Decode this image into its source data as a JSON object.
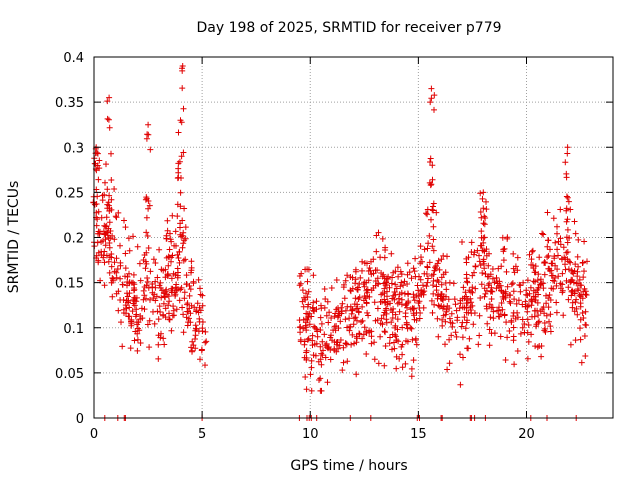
{
  "chart_data": {
    "type": "scatter",
    "title": "Day 198 of 2025, SRMTID for receiver p779",
    "xlabel": "GPS time / hours",
    "ylabel": "SRMTID / TECUs",
    "xlim": [
      0,
      24
    ],
    "ylim": [
      0,
      0.4
    ],
    "xticks": [
      0,
      5,
      10,
      15,
      20
    ],
    "yticks": [
      0,
      0.05,
      0.1,
      0.15,
      0.2,
      0.25,
      0.3,
      0.35,
      0.4
    ],
    "ytick_labels": [
      "0",
      "0.05",
      "0.1",
      "0.15",
      "0.2",
      "0.25",
      "0.3",
      "0.35",
      "0.4"
    ],
    "xtick_labels": [
      "0",
      "5",
      "10",
      "15",
      "20"
    ],
    "grid": true,
    "marker": "+",
    "color": "#e00000",
    "series": [
      {
        "name": "SRMTID",
        "segments": [
          {
            "x_start": 0.0,
            "x_end": 5.2,
            "points_per_hour": 72,
            "peaks": [
              {
                "x": 0.1,
                "y": 0.3
              },
              {
                "x": 0.7,
                "y": 0.355
              },
              {
                "x": 2.5,
                "y": 0.325
              },
              {
                "x": 4.1,
                "y": 0.39
              },
              {
                "x": 4.0,
                "y": 0.33
              }
            ]
          },
          {
            "x_start": 9.5,
            "x_end": 22.8,
            "points_per_hour": 72,
            "peaks": [
              {
                "x": 15.6,
                "y": 0.365
              },
              {
                "x": 21.9,
                "y": 0.3
              },
              {
                "x": 18.0,
                "y": 0.25
              }
            ]
          }
        ],
        "profile": [
          {
            "x": 0.0,
            "y": 0.22
          },
          {
            "x": 0.5,
            "y": 0.2
          },
          {
            "x": 1.0,
            "y": 0.17
          },
          {
            "x": 1.5,
            "y": 0.14
          },
          {
            "x": 2.0,
            "y": 0.13
          },
          {
            "x": 2.5,
            "y": 0.15
          },
          {
            "x": 3.0,
            "y": 0.14
          },
          {
            "x": 3.5,
            "y": 0.15
          },
          {
            "x": 4.0,
            "y": 0.18
          },
          {
            "x": 4.5,
            "y": 0.12
          },
          {
            "x": 5.0,
            "y": 0.1
          },
          {
            "x": 5.2,
            "y": 0.09
          },
          {
            "x": 9.5,
            "y": 0.12
          },
          {
            "x": 10.0,
            "y": 0.09
          },
          {
            "x": 10.5,
            "y": 0.08
          },
          {
            "x": 11.0,
            "y": 0.1
          },
          {
            "x": 11.5,
            "y": 0.11
          },
          {
            "x": 12.0,
            "y": 0.12
          },
          {
            "x": 12.5,
            "y": 0.13
          },
          {
            "x": 13.0,
            "y": 0.14
          },
          {
            "x": 13.5,
            "y": 0.13
          },
          {
            "x": 14.0,
            "y": 0.12
          },
          {
            "x": 14.5,
            "y": 0.12
          },
          {
            "x": 15.0,
            "y": 0.13
          },
          {
            "x": 15.5,
            "y": 0.19
          },
          {
            "x": 16.0,
            "y": 0.14
          },
          {
            "x": 16.5,
            "y": 0.1
          },
          {
            "x": 17.0,
            "y": 0.12
          },
          {
            "x": 17.5,
            "y": 0.14
          },
          {
            "x": 18.0,
            "y": 0.17
          },
          {
            "x": 18.5,
            "y": 0.13
          },
          {
            "x": 19.0,
            "y": 0.14
          },
          {
            "x": 19.5,
            "y": 0.13
          },
          {
            "x": 20.0,
            "y": 0.12
          },
          {
            "x": 20.5,
            "y": 0.14
          },
          {
            "x": 21.0,
            "y": 0.15
          },
          {
            "x": 21.5,
            "y": 0.18
          },
          {
            "x": 22.0,
            "y": 0.16
          },
          {
            "x": 22.5,
            "y": 0.13
          },
          {
            "x": 22.8,
            "y": 0.14
          }
        ],
        "zero_points_x": [
          0.5,
          1.1,
          1.4,
          1.45,
          5.0,
          9.5,
          9.85,
          9.95,
          10.05,
          10.3,
          11.85,
          12.8,
          14.95,
          15.05,
          16.05,
          16.1,
          17.4,
          17.45,
          17.6,
          18.1,
          20.2,
          20.95,
          22.3
        ]
      }
    ]
  }
}
